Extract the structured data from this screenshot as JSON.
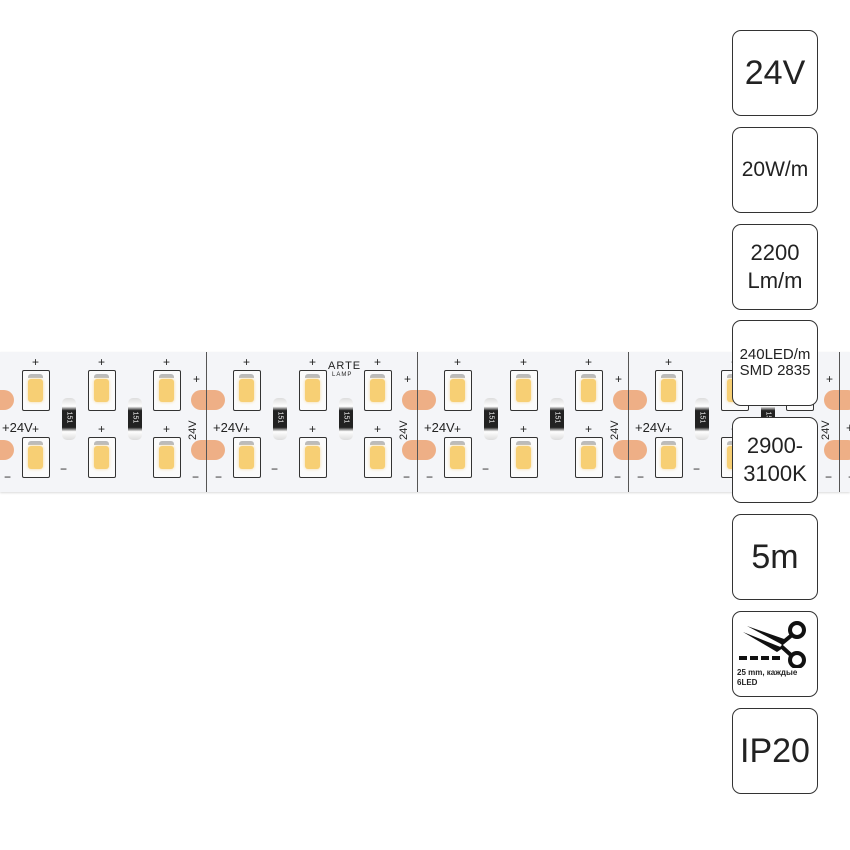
{
  "strip": {
    "brand": "ARTE",
    "brand_sub": "LAMP",
    "voltage_label": "+24V",
    "vertical_label": "24V",
    "resistor_code": "151",
    "plus": "+",
    "minus": "−",
    "led_color": "#f7cf74",
    "pad_color": "#eeaf86"
  },
  "specs": [
    {
      "label": "24V"
    },
    {
      "label": "20W/m"
    },
    {
      "line1": "2200",
      "line2": "Lm/m"
    },
    {
      "line1": "240LED/m",
      "line2": "SMD 2835"
    },
    {
      "line1": "2900-",
      "line2": "3100K"
    },
    {
      "label": "5m"
    },
    {
      "icon": "scissors-cut-icon",
      "caption1": "25 mm, каждые",
      "caption2": "6LED"
    },
    {
      "label": "IP20"
    }
  ]
}
